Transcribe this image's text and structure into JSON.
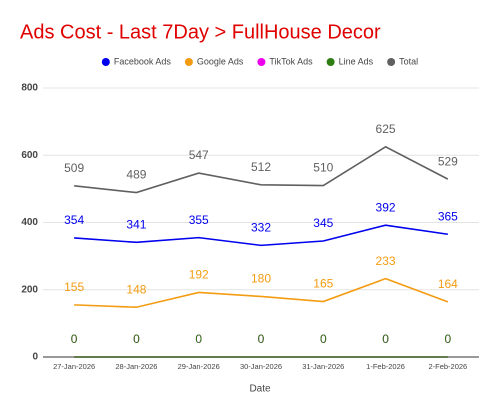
{
  "chart_data": {
    "type": "line",
    "title": "Ads Cost - Last 7Day > FullHouse Decor",
    "x_label": "Date",
    "categories": [
      "27-Jan-2026",
      "28-Jan-2026",
      "29-Jan-2026",
      "30-Jan-2026",
      "31-Jan-2026",
      "1-Feb-2026",
      "2-Feb-2026"
    ],
    "series": [
      {
        "name": "Facebook Ads",
        "color": "#0000ee",
        "values": [
          354,
          341,
          355,
          332,
          345,
          392,
          365
        ]
      },
      {
        "name": "Google Ads",
        "color": "#f39c12",
        "values": [
          155,
          148,
          192,
          180,
          165,
          233,
          164
        ]
      },
      {
        "name": "TikTok Ads",
        "color": "#ee00ee",
        "values": [
          0,
          0,
          0,
          0,
          0,
          0,
          0
        ]
      },
      {
        "name": "Line Ads",
        "color": "#2e7d12",
        "values": [
          0,
          0,
          0,
          0,
          0,
          0,
          0
        ]
      },
      {
        "name": "Total",
        "color": "#606060",
        "values": [
          509,
          489,
          547,
          512,
          510,
          625,
          529
        ]
      }
    ],
    "ylim": [
      0,
      800
    ],
    "yticks": [
      0,
      200,
      400,
      600,
      800
    ],
    "grid": true,
    "legend": "top"
  }
}
